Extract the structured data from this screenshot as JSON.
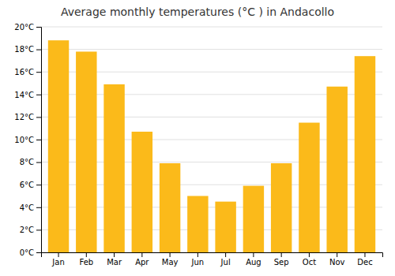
{
  "chart_data": {
    "type": "bar",
    "title": "Average monthly temperatures (°C ) in Andacollo",
    "categories": [
      "Jan",
      "Feb",
      "Mar",
      "Apr",
      "May",
      "Jun",
      "Jul",
      "Aug",
      "Sep",
      "Oct",
      "Nov",
      "Dec"
    ],
    "values": [
      18.8,
      17.8,
      14.9,
      10.7,
      7.9,
      5.0,
      4.5,
      5.9,
      7.9,
      11.5,
      14.7,
      17.4
    ],
    "color": "#FBBA1A",
    "ylim": [
      0,
      20
    ],
    "yticks": [
      {
        "value": 0,
        "label": "0°C"
      },
      {
        "value": 2,
        "label": "2°C"
      },
      {
        "value": 4,
        "label": "4°C"
      },
      {
        "value": 6,
        "label": "6°C"
      },
      {
        "value": 8,
        "label": "8°C"
      },
      {
        "value": 10,
        "label": "10°C"
      },
      {
        "value": 12,
        "label": "12°C"
      },
      {
        "value": 14,
        "label": "14°C"
      },
      {
        "value": 16,
        "label": "16°C"
      },
      {
        "value": 18,
        "label": "18°C"
      },
      {
        "value": 20,
        "label": "20°C"
      }
    ],
    "grid": true
  }
}
